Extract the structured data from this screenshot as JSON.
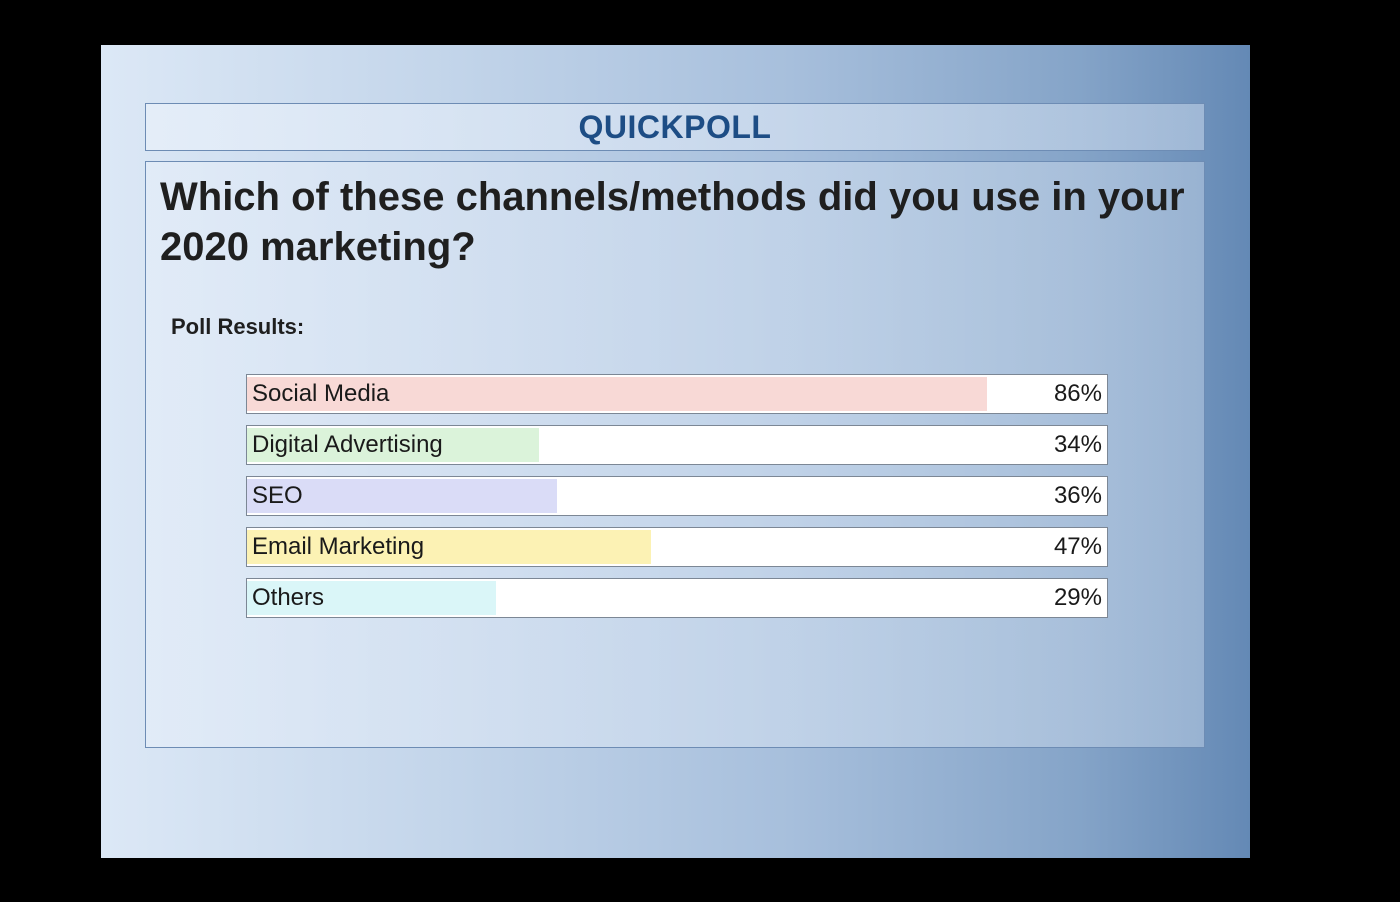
{
  "header": {
    "title": "QUICKPOLL"
  },
  "question": "Which of these channels/methods did you use in your 2020 marketing?",
  "results_label": "Poll Results:",
  "options": [
    {
      "label": "Social Media",
      "percent_text": "86%",
      "value": 86,
      "color": "#f8d9d6"
    },
    {
      "label": "Digital Advertising",
      "percent_text": "34%",
      "value": 34,
      "color": "#dbf3da"
    },
    {
      "label": "SEO",
      "percent_text": "36%",
      "value": 36,
      "color": "#dadcf7"
    },
    {
      "label": "Email Marketing",
      "percent_text": "47%",
      "value": 47,
      "color": "#fcf2b4"
    },
    {
      "label": "Others",
      "percent_text": "29%",
      "value": 29,
      "color": "#daf6f8"
    }
  ],
  "colors": {
    "title": "#1d4d85",
    "border": "#6d8cb4"
  }
}
